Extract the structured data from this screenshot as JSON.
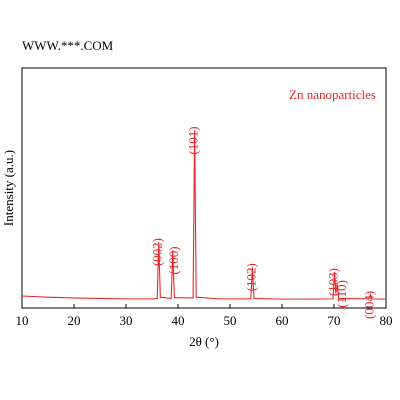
{
  "chart_data": {
    "type": "line",
    "title": "WWW.***.COM",
    "xlabel": "2θ (°)",
    "ylabel": "Intensity (a.u.)",
    "xlim": [
      10,
      80
    ],
    "xticks": [
      10,
      20,
      30,
      40,
      50,
      60,
      70,
      80
    ],
    "ylim": [
      0,
      100
    ],
    "series": [
      {
        "name": "Zn nanoparticles",
        "color": "#e8262b",
        "x": [
          10,
          15,
          20,
          25,
          30,
          35,
          36.0,
          36.3,
          36.6,
          38.7,
          39.0,
          39.3,
          42.9,
          43.2,
          43.5,
          48,
          54.0,
          54.3,
          54.6,
          60,
          65,
          69.8,
          70.1,
          70.35,
          70.6,
          70.9,
          76.7,
          77.0,
          77.3,
          80
        ],
        "values": [
          5,
          4.5,
          4.2,
          4,
          3.8,
          3.8,
          4,
          27.5,
          4.5,
          4,
          24,
          4.3,
          4.2,
          74,
          4.5,
          3.8,
          3.8,
          17,
          4,
          3.7,
          3.7,
          3.8,
          15,
          6,
          10,
          4,
          3.8,
          5.5,
          3.8,
          3.7
        ]
      }
    ],
    "annotations": [
      "(002)",
      "(100)",
      "(101)",
      "(102)",
      "(103)",
      "(110)",
      "(004)"
    ]
  }
}
